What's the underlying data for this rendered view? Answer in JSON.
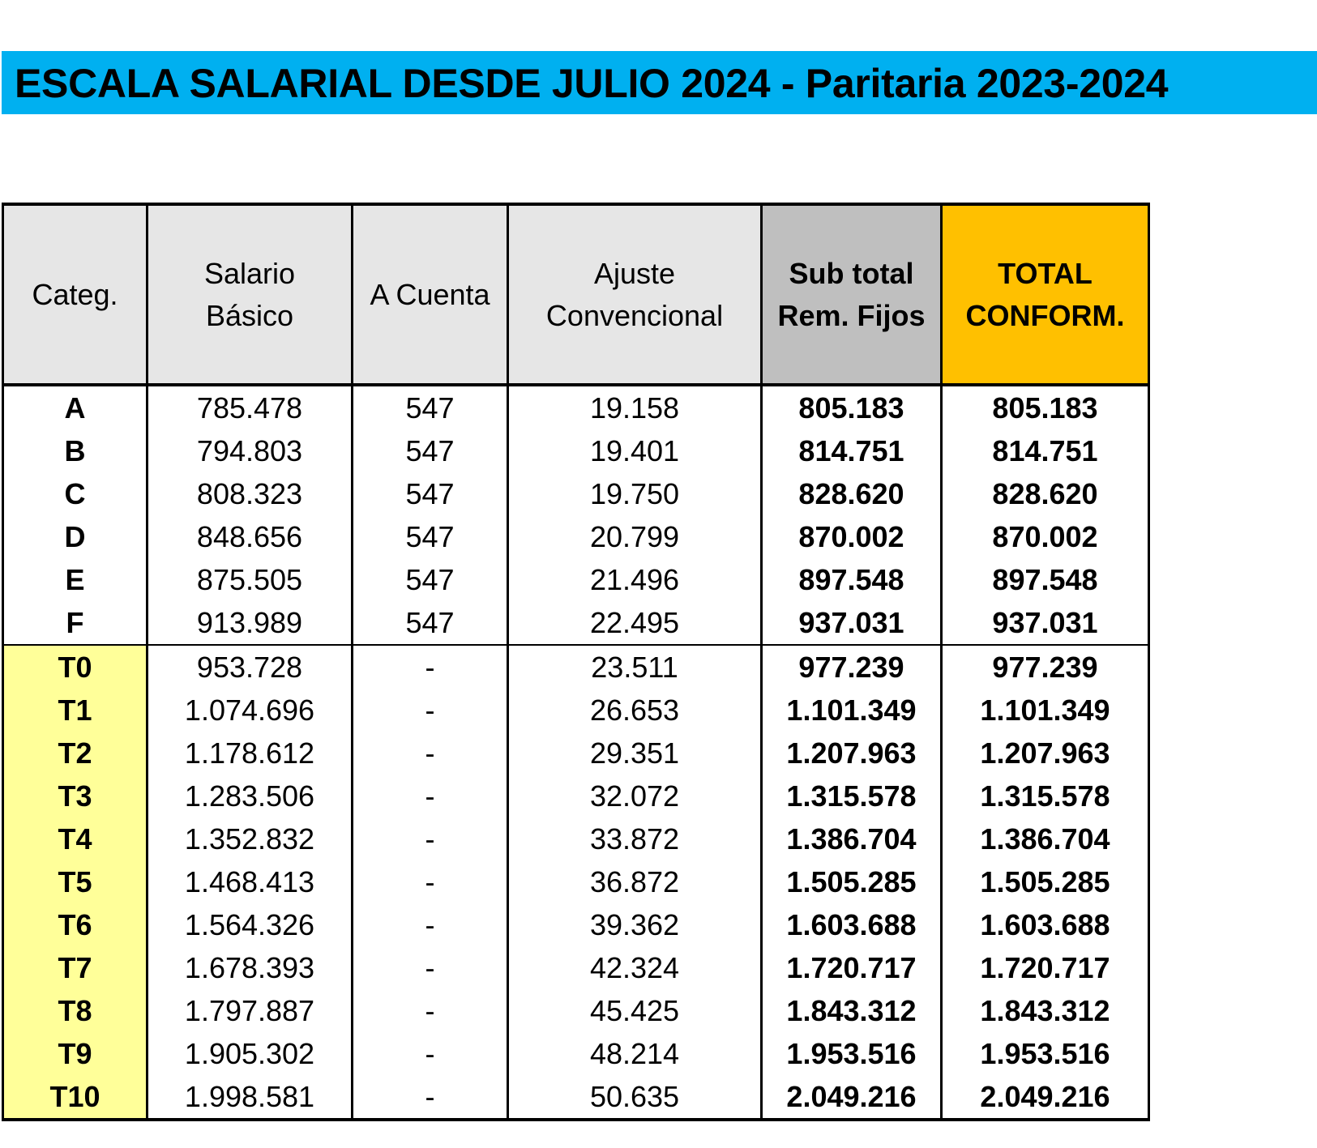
{
  "title": "ESCALA SALARIAL DESDE JULIO 2024 - Paritaria 2023-2024",
  "columns": {
    "categ": "Categ.",
    "salario_line1": "Salario",
    "salario_line2": "Básico",
    "a_cuenta": "A Cuenta",
    "ajuste_line1": "Ajuste",
    "ajuste_line2": "Convencional",
    "subtotal_line1": "Sub total",
    "subtotal_line2": "Rem. Fijos",
    "total_line1": "TOTAL",
    "total_line2": "CONFORM."
  },
  "colors": {
    "banner": "#00b0f0",
    "header": "#e6e6e6",
    "subtotal_header": "#bfbfbf",
    "total_header": "#ffc000",
    "t_category": "#ffff99"
  },
  "rows": [
    {
      "cat": "A",
      "basico": "785.478",
      "a_cuenta": "547",
      "ajuste": "19.158",
      "subtotal": "805.183",
      "total": "805.183"
    },
    {
      "cat": "B",
      "basico": "794.803",
      "a_cuenta": "547",
      "ajuste": "19.401",
      "subtotal": "814.751",
      "total": "814.751"
    },
    {
      "cat": "C",
      "basico": "808.323",
      "a_cuenta": "547",
      "ajuste": "19.750",
      "subtotal": "828.620",
      "total": "828.620"
    },
    {
      "cat": "D",
      "basico": "848.656",
      "a_cuenta": "547",
      "ajuste": "20.799",
      "subtotal": "870.002",
      "total": "870.002"
    },
    {
      "cat": "E",
      "basico": "875.505",
      "a_cuenta": "547",
      "ajuste": "21.496",
      "subtotal": "897.548",
      "total": "897.548"
    },
    {
      "cat": "F",
      "basico": "913.989",
      "a_cuenta": "547",
      "ajuste": "22.495",
      "subtotal": "937.031",
      "total": "937.031"
    },
    {
      "cat": "T0",
      "basico": "953.728",
      "a_cuenta": "-",
      "ajuste": "23.511",
      "subtotal": "977.239",
      "total": "977.239"
    },
    {
      "cat": "T1",
      "basico": "1.074.696",
      "a_cuenta": "-",
      "ajuste": "26.653",
      "subtotal": "1.101.349",
      "total": "1.101.349"
    },
    {
      "cat": "T2",
      "basico": "1.178.612",
      "a_cuenta": "-",
      "ajuste": "29.351",
      "subtotal": "1.207.963",
      "total": "1.207.963"
    },
    {
      "cat": "T3",
      "basico": "1.283.506",
      "a_cuenta": "-",
      "ajuste": "32.072",
      "subtotal": "1.315.578",
      "total": "1.315.578"
    },
    {
      "cat": "T4",
      "basico": "1.352.832",
      "a_cuenta": "-",
      "ajuste": "33.872",
      "subtotal": "1.386.704",
      "total": "1.386.704"
    },
    {
      "cat": "T5",
      "basico": "1.468.413",
      "a_cuenta": "-",
      "ajuste": "36.872",
      "subtotal": "1.505.285",
      "total": "1.505.285"
    },
    {
      "cat": "T6",
      "basico": "1.564.326",
      "a_cuenta": "-",
      "ajuste": "39.362",
      "subtotal": "1.603.688",
      "total": "1.603.688"
    },
    {
      "cat": "T7",
      "basico": "1.678.393",
      "a_cuenta": "-",
      "ajuste": "42.324",
      "subtotal": "1.720.717",
      "total": "1.720.717"
    },
    {
      "cat": "T8",
      "basico": "1.797.887",
      "a_cuenta": "-",
      "ajuste": "45.425",
      "subtotal": "1.843.312",
      "total": "1.843.312"
    },
    {
      "cat": "T9",
      "basico": "1.905.302",
      "a_cuenta": "-",
      "ajuste": "48.214",
      "subtotal": "1.953.516",
      "total": "1.953.516"
    },
    {
      "cat": "T10",
      "basico": "1.998.581",
      "a_cuenta": "-",
      "ajuste": "50.635",
      "subtotal": "2.049.216",
      "total": "2.049.216"
    }
  ]
}
